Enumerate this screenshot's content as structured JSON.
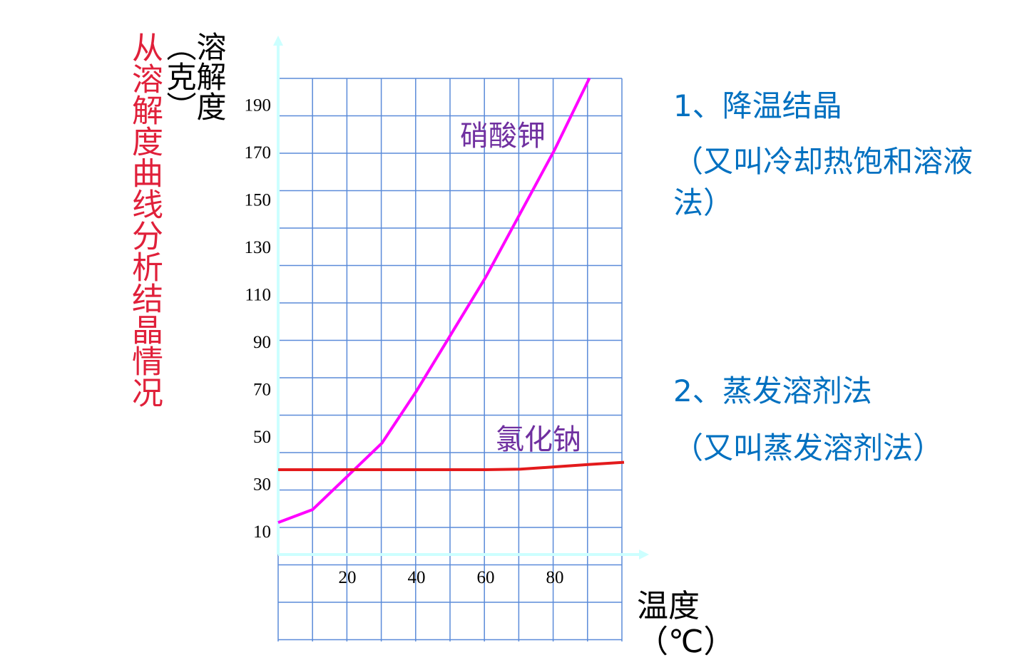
{
  "chart_data": {
    "type": "line",
    "title": "从溶解度曲线分析结晶情况",
    "y_label": "溶解度（克）",
    "x_label": "温度（℃）",
    "x": [
      0,
      10,
      20,
      30,
      40,
      50,
      60,
      70,
      80,
      90,
      100
    ],
    "series": [
      {
        "name": "硝酸钾",
        "color": "#ff00ff",
        "values": [
          13.5,
          19,
          33,
          47,
          69,
          93,
          117,
          144,
          171,
          201,
          null
        ]
      },
      {
        "name": "氯化钠",
        "color": "#e31a1c",
        "values": [
          35.8,
          35.8,
          35.8,
          35.8,
          35.8,
          35.8,
          35.8,
          36,
          37,
          38,
          38.9
        ]
      }
    ],
    "xlim": [
      0,
      100
    ],
    "xticks": [
      20,
      40,
      60,
      80
    ],
    "ylim": [
      0,
      200
    ],
    "yticks": [
      10,
      30,
      50,
      70,
      90,
      110,
      130,
      150,
      170,
      190
    ],
    "grid": true,
    "annotations": [
      "1、降温结晶",
      "（又叫冷却热饱和溶液法）",
      "2、蒸发溶剂法",
      "（又叫蒸发溶剂法）"
    ]
  }
}
